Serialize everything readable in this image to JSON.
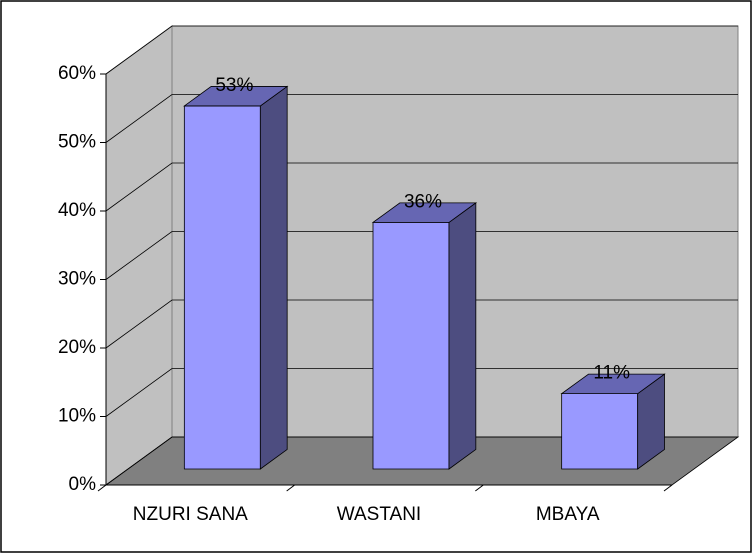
{
  "chart_data": {
    "type": "bar3d",
    "categories": [
      "NZURI SANA",
      "WASTANI",
      "MBAYA"
    ],
    "values": [
      53,
      36,
      11
    ],
    "value_labels": [
      "53%",
      "36%",
      "11%"
    ],
    "color": "#9999ff",
    "ylim": [
      0,
      60
    ],
    "yticks": [
      {
        "value": 0,
        "label": "0%"
      },
      {
        "value": 10,
        "label": "10%"
      },
      {
        "value": 20,
        "label": "20%"
      },
      {
        "value": 30,
        "label": "30%"
      },
      {
        "value": 40,
        "label": "40%"
      },
      {
        "value": 50,
        "label": "50%"
      },
      {
        "value": 60,
        "label": "60%"
      }
    ],
    "grid": true
  }
}
